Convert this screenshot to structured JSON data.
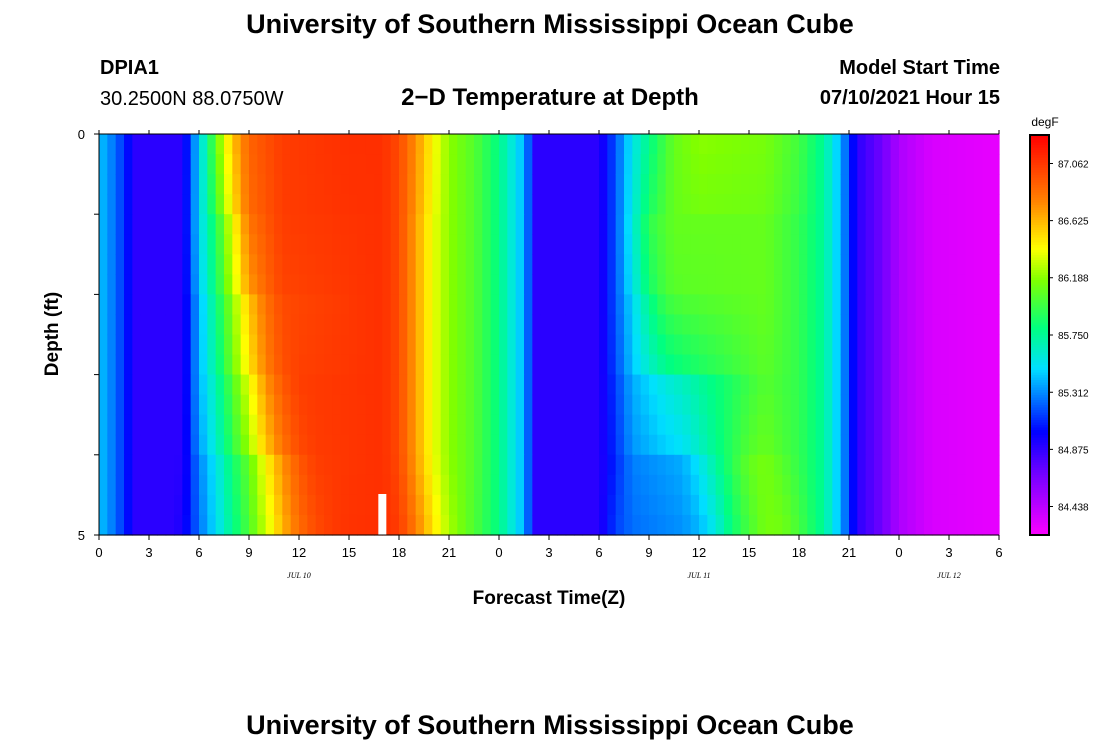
{
  "header": {
    "title": "University of Southern Mississippi Ocean Cube",
    "station": "DPIA1",
    "coords": "30.2500N  88.0750W",
    "plot_title": "2−D Temperature at Depth",
    "model_label": "Model Start Time",
    "model_time": "07/10/2021 Hour 15"
  },
  "footer": {
    "title": "University of Southern Mississippi Ocean Cube"
  },
  "chart_data": {
    "type": "heatmap",
    "title": "2−D Temperature at Depth",
    "xlabel": "Forecast Time(Z)",
    "ylabel": "Depth (ft)",
    "x_tick_labels": [
      "0",
      "3",
      "6",
      "9",
      "12",
      "15",
      "18",
      "21",
      "0",
      "3",
      "6",
      "9",
      "12",
      "15",
      "18",
      "21",
      "0",
      "3",
      "6"
    ],
    "x_hours_range": [
      0,
      54
    ],
    "y_tick_labels": [
      "0",
      "5"
    ],
    "ylim": [
      0,
      5
    ],
    "date_labels": [
      {
        "label": "JUL 10",
        "hour": 12
      },
      {
        "label": "JUL 11",
        "hour": 36
      },
      {
        "label": "JUL 12",
        "hour": 51
      }
    ],
    "colorbar": {
      "unit": "degF",
      "labels": [
        "87.062",
        "86.625",
        "86.188",
        "85.750",
        "85.312",
        "84.875",
        "84.438"
      ],
      "vmin": 84.22,
      "vmax": 87.28
    },
    "marker_hour": 17,
    "depth_rows": [
      0,
      1,
      2,
      3,
      4
    ],
    "temperature_profiles": [
      [
        [
          0,
          85.45
        ],
        [
          1,
          85.25
        ],
        [
          2.2,
          84.9
        ],
        [
          5,
          84.9
        ],
        [
          6.2,
          85.6
        ],
        [
          7,
          86.1
        ],
        [
          8,
          86.6
        ],
        [
          9,
          86.9
        ],
        [
          11,
          87.05
        ],
        [
          15,
          87.1
        ],
        [
          17,
          87.1
        ],
        [
          18,
          87.0
        ],
        [
          19,
          86.75
        ],
        [
          20,
          86.45
        ],
        [
          21,
          86.2
        ],
        [
          22.5,
          86.05
        ],
        [
          24,
          85.8
        ],
        [
          25.5,
          85.4
        ],
        [
          26.2,
          84.9
        ],
        [
          30,
          84.9
        ],
        [
          31,
          85.2
        ],
        [
          32,
          85.55
        ],
        [
          33.5,
          85.9
        ],
        [
          34.5,
          86.1
        ],
        [
          36,
          86.2
        ],
        [
          40,
          86.15
        ],
        [
          42,
          86.0
        ],
        [
          43.5,
          85.75
        ],
        [
          44.5,
          85.4
        ],
        [
          45.5,
          84.9
        ],
        [
          47,
          84.7
        ],
        [
          48,
          84.5
        ],
        [
          50,
          84.35
        ],
        [
          54,
          84.3
        ]
      ],
      [
        [
          0,
          85.45
        ],
        [
          1,
          85.25
        ],
        [
          2.2,
          84.9
        ],
        [
          5,
          84.9
        ],
        [
          6,
          85.5
        ],
        [
          7,
          85.9
        ],
        [
          8,
          86.4
        ],
        [
          9,
          86.85
        ],
        [
          11,
          87.05
        ],
        [
          17,
          87.1
        ],
        [
          18,
          87.0
        ],
        [
          19,
          86.7
        ],
        [
          20,
          86.4
        ],
        [
          21,
          86.2
        ],
        [
          22.5,
          86.05
        ],
        [
          24,
          85.8
        ],
        [
          25.5,
          85.4
        ],
        [
          26.2,
          84.9
        ],
        [
          30,
          84.9
        ],
        [
          31,
          85.2
        ],
        [
          32,
          85.6
        ],
        [
          33,
          85.95
        ],
        [
          34.5,
          86.1
        ],
        [
          40,
          86.1
        ],
        [
          42,
          85.95
        ],
        [
          43.5,
          85.75
        ],
        [
          44.5,
          85.4
        ],
        [
          45.5,
          84.9
        ],
        [
          47,
          84.7
        ],
        [
          48,
          84.5
        ],
        [
          50,
          84.35
        ],
        [
          54,
          84.3
        ]
      ],
      [
        [
          0,
          85.45
        ],
        [
          1,
          85.25
        ],
        [
          2.2,
          84.9
        ],
        [
          5,
          84.9
        ],
        [
          6,
          85.4
        ],
        [
          7,
          85.8
        ],
        [
          8,
          86.2
        ],
        [
          9,
          86.6
        ],
        [
          10,
          86.85
        ],
        [
          11,
          87.0
        ],
        [
          17,
          87.1
        ],
        [
          18,
          87.0
        ],
        [
          19,
          86.7
        ],
        [
          20,
          86.4
        ],
        [
          21,
          86.2
        ],
        [
          22.5,
          86.05
        ],
        [
          24,
          85.8
        ],
        [
          25.5,
          85.4
        ],
        [
          26.2,
          84.9
        ],
        [
          30,
          84.9
        ],
        [
          31,
          85.2
        ],
        [
          32,
          85.5
        ],
        [
          33,
          85.8
        ],
        [
          34,
          86.0
        ],
        [
          35,
          86.05
        ],
        [
          40,
          86.1
        ],
        [
          42,
          85.95
        ],
        [
          43.5,
          85.75
        ],
        [
          44.5,
          85.4
        ],
        [
          45.5,
          84.9
        ],
        [
          47,
          84.7
        ],
        [
          48,
          84.5
        ],
        [
          50,
          84.35
        ],
        [
          54,
          84.3
        ]
      ],
      [
        [
          0,
          85.45
        ],
        [
          1,
          85.25
        ],
        [
          2.2,
          84.9
        ],
        [
          5,
          84.9
        ],
        [
          6,
          85.4
        ],
        [
          7,
          85.7
        ],
        [
          8,
          86.05
        ],
        [
          9,
          86.4
        ],
        [
          10,
          86.75
        ],
        [
          11,
          86.95
        ],
        [
          12,
          87.05
        ],
        [
          17,
          87.1
        ],
        [
          18,
          87.0
        ],
        [
          19,
          86.7
        ],
        [
          20,
          86.4
        ],
        [
          21,
          86.2
        ],
        [
          22.5,
          86.05
        ],
        [
          24,
          85.8
        ],
        [
          25.5,
          85.4
        ],
        [
          26.2,
          84.9
        ],
        [
          30,
          84.9
        ],
        [
          31,
          85.15
        ],
        [
          32,
          85.4
        ],
        [
          34,
          85.6
        ],
        [
          36,
          85.75
        ],
        [
          38,
          85.9
        ],
        [
          40,
          86.05
        ],
        [
          42,
          85.95
        ],
        [
          43.5,
          85.75
        ],
        [
          44.5,
          85.4
        ],
        [
          45.5,
          84.9
        ],
        [
          47,
          84.7
        ],
        [
          48,
          84.5
        ],
        [
          50,
          84.35
        ],
        [
          54,
          84.3
        ]
      ],
      [
        [
          0,
          85.45
        ],
        [
          1,
          85.25
        ],
        [
          2.2,
          84.9
        ],
        [
          5,
          84.9
        ],
        [
          6,
          85.3
        ],
        [
          7,
          85.55
        ],
        [
          8,
          85.85
        ],
        [
          9,
          86.1
        ],
        [
          10,
          86.45
        ],
        [
          11,
          86.75
        ],
        [
          12,
          86.95
        ],
        [
          13,
          87.05
        ],
        [
          17,
          87.1
        ],
        [
          18,
          87.0
        ],
        [
          19,
          86.7
        ],
        [
          20,
          86.4
        ],
        [
          21,
          86.2
        ],
        [
          22.5,
          86.05
        ],
        [
          24,
          85.8
        ],
        [
          25.5,
          85.4
        ],
        [
          26.2,
          84.9
        ],
        [
          30,
          84.9
        ],
        [
          31,
          85.1
        ],
        [
          32,
          85.3
        ],
        [
          35,
          85.4
        ],
        [
          36,
          85.55
        ],
        [
          37,
          85.75
        ],
        [
          38,
          85.95
        ],
        [
          39,
          86.1
        ],
        [
          40,
          86.15
        ],
        [
          41,
          86.05
        ],
        [
          42,
          85.95
        ],
        [
          43.5,
          85.75
        ],
        [
          44.5,
          85.4
        ],
        [
          45.5,
          84.9
        ],
        [
          47,
          84.7
        ],
        [
          48,
          84.5
        ],
        [
          50,
          84.35
        ],
        [
          54,
          84.3
        ]
      ],
      [
        [
          0,
          85.45
        ],
        [
          1,
          85.25
        ],
        [
          2.2,
          84.9
        ],
        [
          4.5,
          84.9
        ],
        [
          5.5,
          85.1
        ],
        [
          6.5,
          85.35
        ],
        [
          7.5,
          85.6
        ],
        [
          8.5,
          85.85
        ],
        [
          9.5,
          86.1
        ],
        [
          10.5,
          86.35
        ],
        [
          11,
          86.55
        ],
        [
          12,
          86.8
        ],
        [
          13,
          86.95
        ],
        [
          14,
          87.05
        ],
        [
          15,
          87.1
        ],
        [
          18,
          87.1
        ],
        [
          19,
          86.9
        ],
        [
          20,
          86.6
        ],
        [
          21,
          86.3
        ],
        [
          22,
          86.1
        ],
        [
          24,
          85.8
        ],
        [
          25.5,
          85.4
        ],
        [
          26.2,
          84.9
        ],
        [
          30,
          84.9
        ],
        [
          31,
          85.2
        ],
        [
          36,
          85.3
        ],
        [
          37,
          85.45
        ],
        [
          38,
          85.75
        ],
        [
          39,
          85.95
        ],
        [
          40,
          86.15
        ],
        [
          41,
          86.2
        ],
        [
          42,
          86.05
        ],
        [
          43.5,
          85.75
        ],
        [
          44.5,
          85.4
        ],
        [
          45.5,
          84.9
        ],
        [
          47,
          84.7
        ],
        [
          48,
          84.5
        ],
        [
          50,
          84.35
        ],
        [
          54,
          84.3
        ]
      ]
    ]
  }
}
